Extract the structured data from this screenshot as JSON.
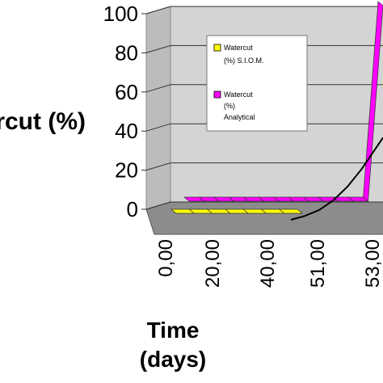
{
  "chart_data": {
    "type": "line",
    "style": "3d-perspective",
    "ylabel": "Watercut (%)",
    "xlabel": [
      "Time",
      "(days)"
    ],
    "y_ticks": [
      "0",
      "20",
      "40",
      "60",
      "80",
      "100"
    ],
    "ylim": [
      0,
      100
    ],
    "x_ticks": [
      "0,00",
      "20,00",
      "40,00",
      "51,00",
      "53,00"
    ],
    "grid": true,
    "legend_position": "upper-middle",
    "series": [
      {
        "name": "Watercut (%) S.I.O.M.",
        "legend_lines": [
          "Watercut",
          "(%) S.I.O.M."
        ],
        "color": "#ffff00",
        "render": "ribbon",
        "values": [
          0,
          0,
          0,
          0,
          0,
          0,
          0,
          0
        ]
      },
      {
        "name": "Watercut (%) Analytical",
        "legend_lines": [
          "Watercut",
          "(%)",
          "Analytical"
        ],
        "color": "#ff00ff",
        "render": "ribbon",
        "values": [
          0,
          0,
          0,
          0,
          0,
          0,
          0,
          0,
          0,
          0,
          0,
          0,
          0,
          100
        ]
      },
      {
        "name": "",
        "color": "#000000",
        "render": "line",
        "x": [
          0.48,
          0.56,
          0.64,
          0.72,
          0.8,
          0.88,
          0.94,
          1.0
        ],
        "values": [
          0,
          2,
          5,
          10,
          17,
          26,
          34,
          42
        ]
      }
    ]
  }
}
